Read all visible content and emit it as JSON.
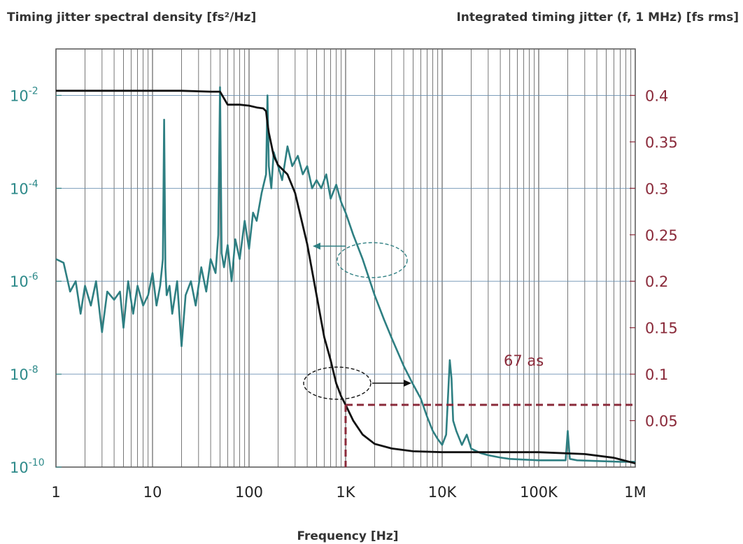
{
  "chart_data": {
    "type": "line",
    "left_axis_title": "Timing jitter spectral density [fs²/Hz]",
    "right_axis_title": "Integrated timing jitter (f, 1 MHz) [fs rms]",
    "xlabel": "Frequency [Hz]",
    "x_scale": "log",
    "xlim": [
      1,
      1000000
    ],
    "x_ticks": [
      1,
      10,
      100,
      1000,
      10000,
      100000,
      1000000
    ],
    "x_tick_labels": [
      "1",
      "10",
      "100",
      "1K",
      "10K",
      "100K",
      "1M"
    ],
    "y_left_scale": "log",
    "y_left_lim": [
      1e-10,
      0.1
    ],
    "y_left_ticks": [
      {
        "base": "10",
        "exp": "-2",
        "value": 0.01
      },
      {
        "base": "10",
        "exp": "-4",
        "value": 0.0001
      },
      {
        "base": "10",
        "exp": "-6",
        "value": 1e-06
      },
      {
        "base": "10",
        "exp": "-8",
        "value": 1e-08
      },
      {
        "base": "10",
        "exp": "-10",
        "value": 1e-10
      }
    ],
    "y_right_lim": [
      0,
      0.45
    ],
    "y_right_ticks": [
      0.4,
      0.35,
      0.3,
      0.25,
      0.2,
      0.15,
      0.1,
      0.05
    ],
    "y_right_tick_labels": [
      "0.4",
      "0.35",
      "0.3",
      "0.25",
      "0.2",
      "0.15",
      "0.1",
      "0.05"
    ],
    "grid": true,
    "annotation": "67 as",
    "annotation_point": {
      "x": 1000,
      "y": 0.067
    },
    "colors": {
      "psd": "#2e7f82",
      "integrated": "#111111",
      "annotation": "#8a2a3a",
      "grid_v": "#555555",
      "grid_h": "#6a8fb0"
    },
    "series": [
      {
        "axis": "left",
        "x": [
          1,
          1.2,
          1.4,
          1.6,
          1.8,
          2,
          2.3,
          2.6,
          3,
          3.4,
          4,
          4.6,
          5,
          5.6,
          6.3,
          7,
          8,
          9,
          10,
          11,
          12,
          12.8,
          13.2,
          13.6,
          14,
          15,
          16,
          18,
          20,
          22,
          25,
          28,
          32,
          36,
          40,
          45,
          48,
          50,
          52,
          55,
          60,
          66,
          72,
          80,
          90,
          100,
          110,
          120,
          135,
          150,
          155,
          160,
          170,
          180,
          200,
          220,
          250,
          280,
          320,
          360,
          400,
          450,
          500,
          560,
          630,
          700,
          800,
          900,
          1000,
          1200,
          1500,
          2000,
          2500,
          3000,
          4000,
          5000,
          6000,
          7000,
          8000,
          9000,
          10000,
          11000,
          12000,
          12500,
          13000,
          14000,
          16000,
          18000,
          20000,
          25000,
          30000,
          40000,
          50000,
          70000,
          100000,
          150000,
          190000,
          200000,
          210000,
          250000,
          400000,
          700000,
          1000000
        ],
        "y": [
          3e-06,
          2.5e-06,
          6e-07,
          1e-06,
          2e-07,
          8e-07,
          3e-07,
          1e-06,
          8e-08,
          6e-07,
          4e-07,
          6e-07,
          1e-07,
          1e-06,
          2e-07,
          8e-07,
          3e-07,
          5e-07,
          1.5e-06,
          3e-07,
          8e-07,
          3e-06,
          0.003,
          2e-06,
          5e-07,
          8e-07,
          2e-07,
          1e-06,
          4e-08,
          5e-07,
          1e-06,
          3e-07,
          2e-06,
          6e-07,
          3e-06,
          1.5e-06,
          1e-05,
          0.015,
          4e-06,
          2e-06,
          6e-06,
          1e-06,
          8e-06,
          3e-06,
          2e-05,
          5e-06,
          3e-05,
          2e-05,
          8e-05,
          0.0002,
          0.01,
          0.0003,
          0.0001,
          0.0006,
          0.0003,
          0.00015,
          0.0008,
          0.0003,
          0.0005,
          0.0002,
          0.0003,
          0.0001,
          0.00015,
          0.0001,
          0.0002,
          6e-05,
          0.00012,
          5e-05,
          3e-05,
          1e-05,
          3e-06,
          5e-07,
          1.5e-07,
          6e-08,
          1.5e-08,
          6e-09,
          3e-09,
          1.2e-09,
          6e-10,
          4e-10,
          3e-10,
          5e-10,
          2e-08,
          8e-09,
          1e-09,
          6e-10,
          3e-10,
          5e-10,
          2.5e-10,
          2e-10,
          1.8e-10,
          1.6e-10,
          1.5e-10,
          1.45e-10,
          1.4e-10,
          1.4e-10,
          1.4e-10,
          6e-10,
          1.5e-10,
          1.4e-10,
          1.35e-10,
          1.3e-10,
          1.3e-10
        ]
      },
      {
        "axis": "right",
        "x": [
          1,
          10,
          20,
          40,
          50,
          60,
          80,
          100,
          120,
          140,
          150,
          155,
          160,
          180,
          200,
          250,
          300,
          400,
          500,
          600,
          700,
          800,
          900,
          1000,
          1200,
          1500,
          2000,
          3000,
          5000,
          10000,
          100000,
          300000,
          600000,
          1000000
        ],
        "y": [
          0.405,
          0.405,
          0.405,
          0.404,
          0.404,
          0.39,
          0.39,
          0.389,
          0.387,
          0.386,
          0.383,
          0.37,
          0.36,
          0.335,
          0.325,
          0.315,
          0.295,
          0.24,
          0.185,
          0.14,
          0.115,
          0.09,
          0.076,
          0.067,
          0.05,
          0.035,
          0.025,
          0.02,
          0.017,
          0.016,
          0.016,
          0.014,
          0.01,
          0.004
        ]
      }
    ]
  }
}
